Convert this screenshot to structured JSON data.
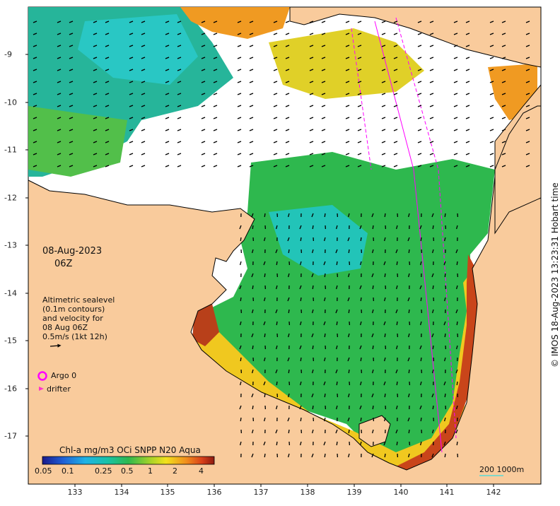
{
  "map": {
    "date_line": "08-Aug-2023",
    "time_line": "06Z",
    "legend_text": [
      "Altimetric sealevel",
      "(0.1m contours)",
      "and velocity for",
      "08 Aug 06Z",
      "0.5m/s (1kt 12h)"
    ],
    "argo_label": "Argo 0",
    "drifter_label": "drifter",
    "colorbar_title": "Chl-a mg/m3 OCi SNPP N20 Aqua",
    "colorbar_ticks": [
      "0.05",
      "0.1",
      "0.25",
      "0.5",
      "1",
      "2",
      "4"
    ],
    "scale_label": "200  1000m",
    "credit": "© IMOS 18-Aug-2023 13:23:31 Hobart time",
    "lon_ticks": [
      "133",
      "134",
      "135",
      "136",
      "137",
      "138",
      "139",
      "140",
      "141",
      "142"
    ],
    "lat_ticks": [
      "-9",
      "-10",
      "-11",
      "-12",
      "-13",
      "-14",
      "-15",
      "-16",
      "-17"
    ],
    "colors": {
      "land": "#f9cb9c",
      "argo": "#ff00ff",
      "drifter": "#ff33cc",
      "track": "#ff00ff"
    }
  }
}
